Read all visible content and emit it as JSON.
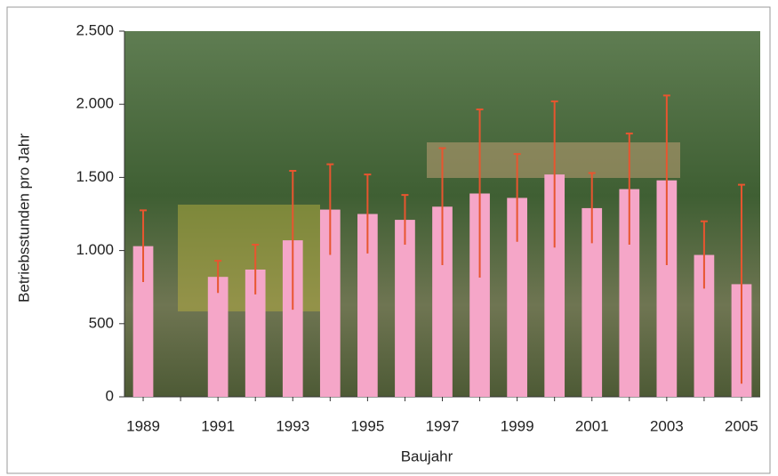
{
  "chart_data": {
    "type": "bar",
    "x_label": "Baujahr",
    "y_label": "Betriebsstunden pro Jahr",
    "categories": [
      "1989",
      null,
      "1991",
      null,
      "1993",
      null,
      "1995",
      null,
      "1997",
      null,
      "1999",
      null,
      "2001",
      null,
      "2003",
      null,
      "2005"
    ],
    "values": [
      1030,
      null,
      820,
      870,
      1070,
      1280,
      1250,
      1210,
      1300,
      1390,
      1360,
      1520,
      1290,
      1420,
      1480,
      970,
      770
    ],
    "errors": [
      245,
      null,
      110,
      170,
      475,
      310,
      270,
      170,
      400,
      575,
      300,
      500,
      240,
      380,
      580,
      230,
      680
    ],
    "color": "#f5a6c8",
    "error_color": "#e8552f",
    "ylim": [
      0,
      2500
    ],
    "yticks": [
      0,
      500,
      {
        "value": 1000,
        "label": "1.000"
      },
      {
        "value": 1500,
        "label": "1.500"
      },
      {
        "value": 2000,
        "label": "2.000"
      },
      {
        "value": 2500,
        "label": "2.500"
      }
    ]
  }
}
